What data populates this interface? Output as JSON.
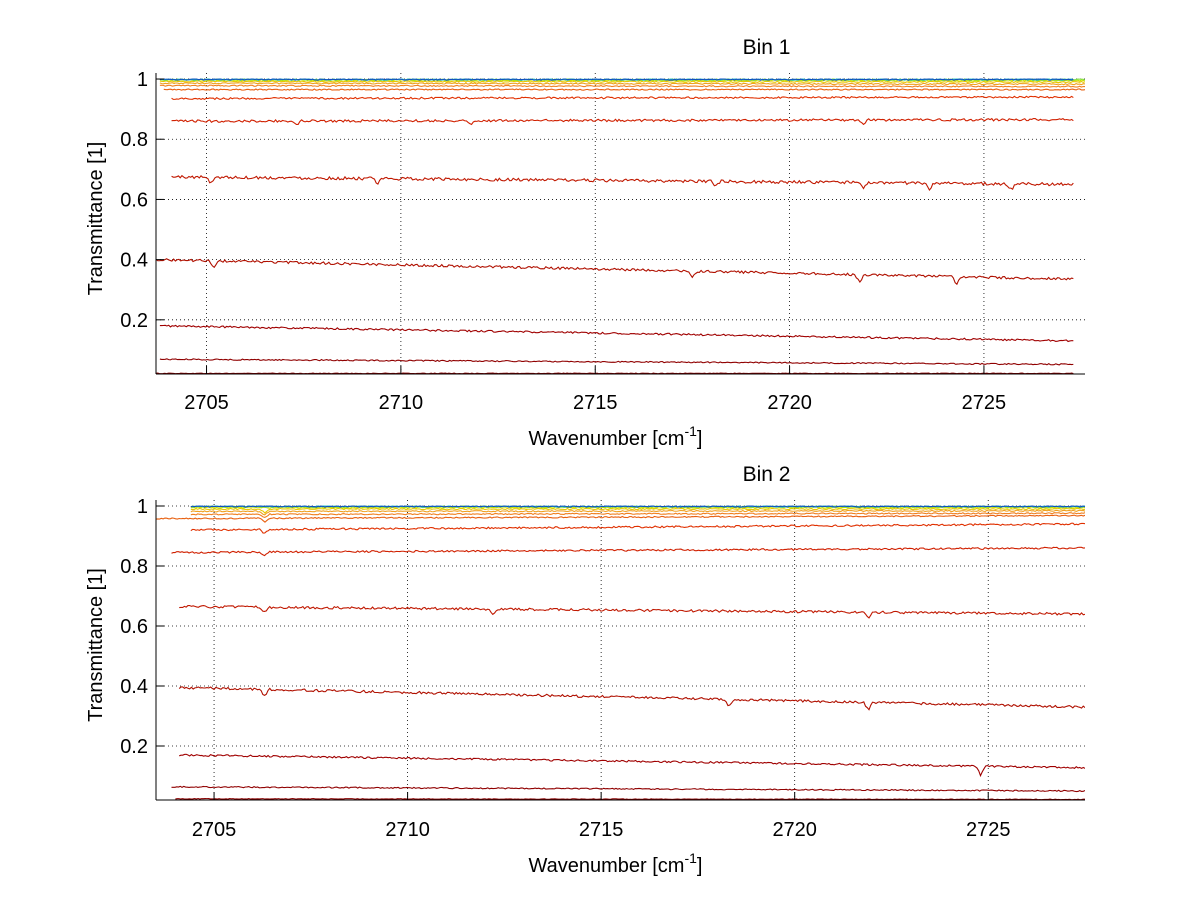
{
  "figure": {
    "background": "#ffffff"
  },
  "chart_data": [
    {
      "type": "line",
      "title": "Bin 1",
      "xlabel": "Wavenumber [cm",
      "xlabel_sup": "-1",
      "xlabel_tail": "]",
      "ylabel": "Transmittance [1]",
      "xlim": [
        2703.7,
        2727.6
      ],
      "ylim": [
        0.02,
        1.02
      ],
      "xticks": [
        2705,
        2710,
        2715,
        2720,
        2725
      ],
      "xtick_labels": [
        "2705",
        "2710",
        "2715",
        "2720",
        "2725"
      ],
      "yticks": [
        0.2,
        0.4,
        0.6,
        0.8,
        1
      ],
      "ytick_labels": [
        "0.2",
        "0.4",
        "0.6",
        "0.8",
        "1"
      ],
      "grid": true,
      "series": [
        {
          "color": "#8b0000",
          "x_start": 2703.7,
          "x_end": 2727.3,
          "y_start": 0.022,
          "y_end": 0.022,
          "noise": 0.001,
          "dips": []
        },
        {
          "color": "#900000",
          "x_start": 2703.8,
          "x_end": 2727.3,
          "y_start": 0.069,
          "y_end": 0.052,
          "noise": 0.002,
          "dips": []
        },
        {
          "color": "#a00000",
          "x_start": 2703.8,
          "x_end": 2727.3,
          "y_start": 0.18,
          "y_end": 0.13,
          "noise": 0.003,
          "dips": []
        },
        {
          "color": "#b01000",
          "x_start": 2703.7,
          "x_end": 2727.3,
          "y_start": 0.4,
          "y_end": 0.335,
          "noise": 0.004,
          "dips": [
            2705.2,
            2717.5,
            2721.8,
            2724.3
          ]
        },
        {
          "color": "#c01800",
          "x_start": 2704.1,
          "x_end": 2727.3,
          "y_start": 0.675,
          "y_end": 0.65,
          "noise": 0.005,
          "dips": [
            2705.1,
            2709.4,
            2718.1,
            2721.9,
            2723.6,
            2725.7
          ]
        },
        {
          "color": "#d02000",
          "x_start": 2704.1,
          "x_end": 2727.3,
          "y_start": 0.86,
          "y_end": 0.865,
          "noise": 0.004,
          "dips": [
            2707.3,
            2711.8,
            2721.9
          ]
        },
        {
          "color": "#e03000",
          "x_start": 2704.1,
          "x_end": 2727.3,
          "y_start": 0.935,
          "y_end": 0.94,
          "noise": 0.003,
          "dips": []
        },
        {
          "color": "#e86010",
          "x_start": 2703.9,
          "x_end": 2727.6,
          "y_start": 0.965,
          "y_end": 0.965,
          "noise": 0.002,
          "dips": []
        },
        {
          "color": "#f08020",
          "x_start": 2703.8,
          "x_end": 2727.6,
          "y_start": 0.978,
          "y_end": 0.975,
          "noise": 0.002,
          "dips": []
        },
        {
          "color": "#f0a020",
          "x_start": 2703.8,
          "x_end": 2727.6,
          "y_start": 0.986,
          "y_end": 0.983,
          "noise": 0.002,
          "dips": []
        },
        {
          "color": "#e8c800",
          "x_start": 2703.8,
          "x_end": 2727.6,
          "y_start": 0.992,
          "y_end": 0.99,
          "noise": 0.002,
          "dips": []
        },
        {
          "color": "#c8e000",
          "x_start": 2703.8,
          "x_end": 2727.6,
          "y_start": 0.996,
          "y_end": 0.995,
          "noise": 0.002,
          "dips": []
        },
        {
          "color": "#80e040",
          "x_start": 2703.8,
          "x_end": 2727.6,
          "y_start": 0.998,
          "y_end": 0.998,
          "noise": 0.002,
          "dips": []
        },
        {
          "color": "#20c0c0",
          "x_start": 2703.8,
          "x_end": 2727.3,
          "y_start": 0.999,
          "y_end": 0.999,
          "noise": 0.003,
          "dips": []
        },
        {
          "color": "#1050c0",
          "x_start": 2703.8,
          "x_end": 2727.3,
          "y_start": 1.0,
          "y_end": 1.0,
          "noise": 0.004,
          "dips": []
        }
      ]
    },
    {
      "type": "line",
      "title": "Bin 2",
      "xlabel": "Wavenumber [cm",
      "xlabel_sup": "-1",
      "xlabel_tail": "]",
      "ylabel": "Transmittance [1]",
      "xlim": [
        2703.5,
        2727.5
      ],
      "ylim": [
        0.02,
        1.02
      ],
      "xticks": [
        2705,
        2710,
        2715,
        2720,
        2725
      ],
      "xtick_labels": [
        "2705",
        "2710",
        "2715",
        "2720",
        "2725"
      ],
      "yticks": [
        0.2,
        0.4,
        0.6,
        0.8,
        1
      ],
      "ytick_labels": [
        "0.2",
        "0.4",
        "0.6",
        "0.8",
        "1"
      ],
      "grid": true,
      "series": [
        {
          "color": "#8b0000",
          "x_start": 2704.0,
          "x_end": 2727.5,
          "y_start": 0.024,
          "y_end": 0.022,
          "noise": 0.001,
          "dips": []
        },
        {
          "color": "#900000",
          "x_start": 2703.9,
          "x_end": 2727.5,
          "y_start": 0.064,
          "y_end": 0.05,
          "noise": 0.002,
          "dips": []
        },
        {
          "color": "#a00000",
          "x_start": 2704.1,
          "x_end": 2727.5,
          "y_start": 0.17,
          "y_end": 0.128,
          "noise": 0.003,
          "dips": [
            2724.8
          ]
        },
        {
          "color": "#b01000",
          "x_start": 2704.1,
          "x_end": 2727.5,
          "y_start": 0.395,
          "y_end": 0.33,
          "noise": 0.004,
          "dips": [
            2706.3,
            2718.3,
            2721.9
          ]
        },
        {
          "color": "#c01800",
          "x_start": 2704.1,
          "x_end": 2727.5,
          "y_start": 0.665,
          "y_end": 0.64,
          "noise": 0.004,
          "dips": [
            2706.3,
            2712.2,
            2721.9
          ]
        },
        {
          "color": "#d02000",
          "x_start": 2703.9,
          "x_end": 2727.5,
          "y_start": 0.845,
          "y_end": 0.86,
          "noise": 0.003,
          "dips": [
            2706.3
          ]
        },
        {
          "color": "#e03000",
          "x_start": 2704.4,
          "x_end": 2727.5,
          "y_start": 0.92,
          "y_end": 0.94,
          "noise": 0.003,
          "dips": [
            2706.3
          ]
        },
        {
          "color": "#e86010",
          "x_start": 2703.5,
          "x_end": 2727.5,
          "y_start": 0.958,
          "y_end": 0.968,
          "noise": 0.002,
          "dips": [
            2706.3
          ]
        },
        {
          "color": "#f08020",
          "x_start": 2704.4,
          "x_end": 2727.5,
          "y_start": 0.972,
          "y_end": 0.976,
          "noise": 0.002,
          "dips": [
            2706.3
          ]
        },
        {
          "color": "#f0a020",
          "x_start": 2704.4,
          "x_end": 2727.5,
          "y_start": 0.982,
          "y_end": 0.984,
          "noise": 0.002,
          "dips": [
            2706.3
          ]
        },
        {
          "color": "#e8c800",
          "x_start": 2704.4,
          "x_end": 2727.5,
          "y_start": 0.99,
          "y_end": 0.99,
          "noise": 0.002,
          "dips": [
            2706.3
          ]
        },
        {
          "color": "#c8e000",
          "x_start": 2704.4,
          "x_end": 2727.5,
          "y_start": 0.995,
          "y_end": 0.995,
          "noise": 0.002,
          "dips": []
        },
        {
          "color": "#80e040",
          "x_start": 2704.4,
          "x_end": 2727.5,
          "y_start": 0.998,
          "y_end": 0.998,
          "noise": 0.002,
          "dips": []
        },
        {
          "color": "#20c0c0",
          "x_start": 2704.4,
          "x_end": 2727.5,
          "y_start": 0.999,
          "y_end": 0.999,
          "noise": 0.003,
          "dips": []
        },
        {
          "color": "#1050c0",
          "x_start": 2704.4,
          "x_end": 2727.5,
          "y_start": 1.0,
          "y_end": 1.0,
          "noise": 0.004,
          "dips": []
        }
      ]
    }
  ]
}
